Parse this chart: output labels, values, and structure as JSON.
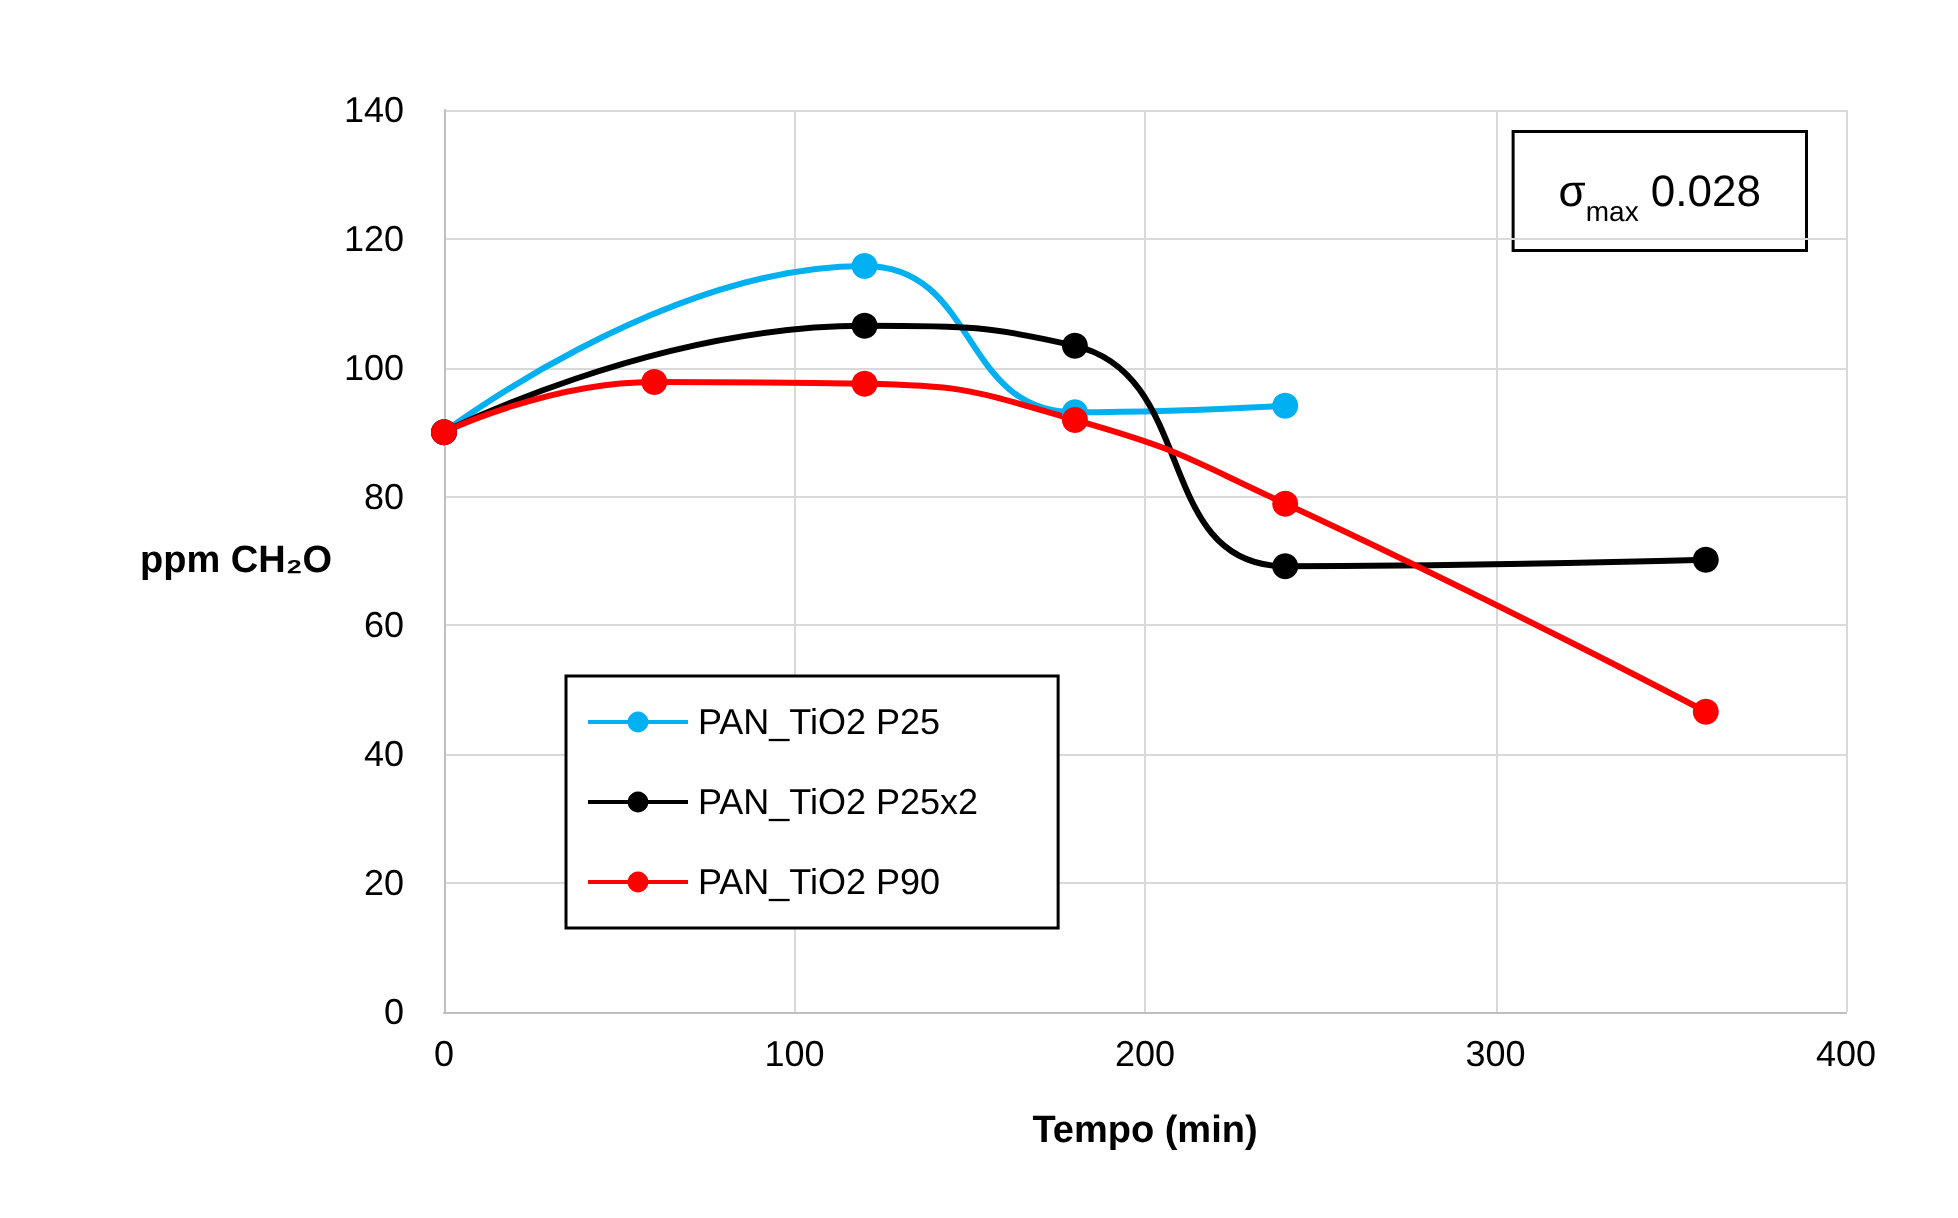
{
  "chart_data": {
    "type": "line",
    "xlabel": "Tempo (min)",
    "ylabel": "ppm CH₂O",
    "xlim": [
      0,
      400
    ],
    "xticks": [
      0,
      100,
      200,
      300,
      400
    ],
    "ylim": [
      0,
      140
    ],
    "yticks": [
      0,
      20,
      40,
      60,
      80,
      100,
      120,
      140
    ],
    "grid": true,
    "legend": "bottom left",
    "marker": "circle",
    "line_style": "solid",
    "annotations": [
      "σ$_{max}$ 0.028"
    ],
    "series": [
      {
        "name": "PAN_TiO2 P25",
        "color": "#00b0f0",
        "x": [
          0,
          120,
          180,
          240
        ],
        "values": [
          90,
          115.8,
          93.1,
          94.1
        ]
      },
      {
        "name": "PAN_TiO2 P25x2",
        "color": "#000000",
        "x": [
          0,
          120,
          180,
          240,
          360
        ],
        "values": [
          90,
          106.5,
          103.4,
          69.2,
          70.2
        ]
      },
      {
        "name": "PAN_TiO2 P90",
        "color": "#ff0000",
        "x": [
          0,
          60,
          120,
          180,
          240,
          360
        ],
        "values": [
          90,
          97.8,
          97.5,
          91.9,
          78.9,
          46.6
        ]
      }
    ]
  }
}
